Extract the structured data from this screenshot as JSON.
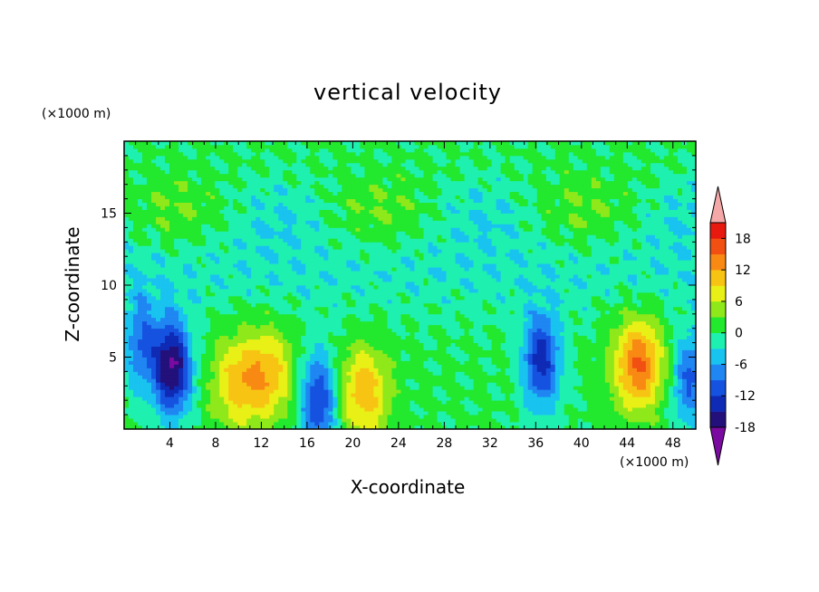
{
  "chart_data": {
    "type": "heatmap",
    "title": "vertical velocity",
    "xlabel": "X-coordinate",
    "ylabel": "Z-coordinate",
    "x_unit": "(×1000 m)",
    "y_unit": "(×1000 m)",
    "xlim": [
      0,
      50
    ],
    "ylim": [
      0,
      20
    ],
    "xticks": [
      4,
      8,
      12,
      16,
      20,
      24,
      28,
      32,
      36,
      40,
      44,
      48
    ],
    "yticks": [
      5,
      10,
      15
    ],
    "colorbar": {
      "levels": [
        -21,
        -18,
        -15,
        -12,
        -9,
        -6,
        -3,
        0,
        3,
        6,
        9,
        12,
        15,
        18,
        21
      ],
      "tick_labels": [
        "18",
        "12",
        "6",
        "0",
        "-6",
        "-12",
        "-18"
      ],
      "colors": [
        "#7a0aa0",
        "#23107a",
        "#0f2ab4",
        "#1652e0",
        "#1f86f2",
        "#19c3f0",
        "#1ef0b0",
        "#22e82e",
        "#8ee81a",
        "#e8f016",
        "#f8c414",
        "#f88a14",
        "#f25012",
        "#e81a10",
        "#f4a8a8"
      ]
    },
    "features": [
      {
        "x": 4.2,
        "z": 4.3,
        "value": -19
      },
      {
        "x": 1.5,
        "z": 6.0,
        "value": -9
      },
      {
        "x": 9.8,
        "z": 3.2,
        "value": 9
      },
      {
        "x": 12.6,
        "z": 3.8,
        "value": 10
      },
      {
        "x": 17.0,
        "z": 2.0,
        "value": -13
      },
      {
        "x": 21.0,
        "z": 2.6,
        "value": 11
      },
      {
        "x": 36.5,
        "z": 4.8,
        "value": -14
      },
      {
        "x": 45.0,
        "z": 4.5,
        "value": 15
      },
      {
        "x": 49.5,
        "z": 3.5,
        "value": -10
      }
    ]
  }
}
